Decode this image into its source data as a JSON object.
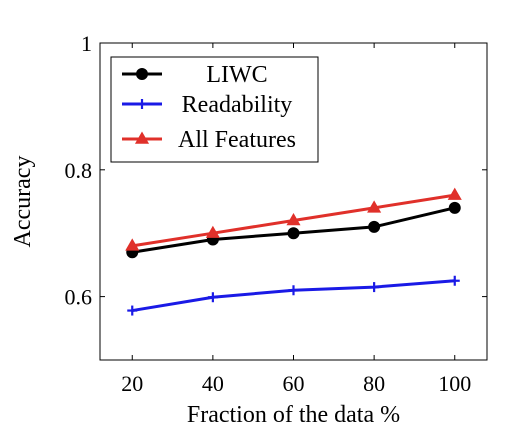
{
  "chart_data": {
    "type": "line",
    "title": "",
    "xlabel": "Fraction of the data %",
    "ylabel": "Accuracy",
    "x": [
      20,
      40,
      60,
      80,
      100
    ],
    "xticks": [
      "20",
      "40",
      "60",
      "80",
      "100"
    ],
    "xlim": [
      12,
      108
    ],
    "ylim": [
      0.5,
      1.0
    ],
    "yticks": [
      "0.6",
      "0.8",
      "1"
    ],
    "ytick_values": [
      0.6,
      0.8,
      1.0
    ],
    "grid": false,
    "legend_position": "top-left",
    "series": [
      {
        "name": "LIWC",
        "color": "#000000",
        "marker": "circle",
        "values": [
          0.67,
          0.69,
          0.7,
          0.71,
          0.74
        ]
      },
      {
        "name": "Readability",
        "color": "#1a1ae6",
        "marker": "plus",
        "values": [
          0.578,
          0.599,
          0.61,
          0.615,
          0.625
        ]
      },
      {
        "name": "All Features",
        "color": "#e0302a",
        "marker": "triangle",
        "values": [
          0.68,
          0.7,
          0.72,
          0.74,
          0.76
        ]
      }
    ]
  }
}
